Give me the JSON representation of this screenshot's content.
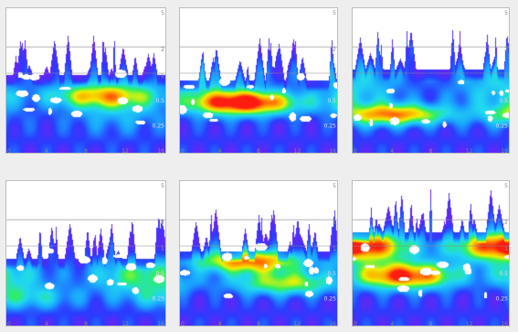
{
  "chart_data": [
    {
      "type": "heatmap",
      "y_tick_labels": [
        "5",
        "2",
        "1",
        "0.5",
        "0.25"
      ],
      "x_tick_labels": [
        "0",
        "4",
        "8",
        "12",
        "16"
      ],
      "contour_labels": [
        "0.5",
        "0.25"
      ],
      "colormap": [
        "#ffffff",
        "#7a1ef0",
        "#2a3cff",
        "#1aa0ff",
        "#20d8f0",
        "#30f060",
        "#f0f000",
        "#ffa000",
        "#ff1c10"
      ],
      "power_bands": [
        {
          "y": 0.4,
          "width": 0.08,
          "peak": 0.55
        },
        {
          "y": 0.33,
          "width": 0.18,
          "peak": 0.25
        }
      ],
      "noise_ceiling": 0.75
    },
    {
      "type": "heatmap",
      "y_tick_labels": [
        "5",
        "2",
        "1",
        "0.5",
        "0.25"
      ],
      "x_tick_labels": [
        "0",
        "4",
        "8",
        "12",
        "16"
      ],
      "contour_labels": [
        "0.5",
        "0.25"
      ],
      "colormap": [
        "#ffffff",
        "#7a1ef0",
        "#2a3cff",
        "#1aa0ff",
        "#20d8f0",
        "#30f060",
        "#f0f000",
        "#ffa000",
        "#ff1c10"
      ],
      "power_bands": [
        {
          "y": 0.35,
          "width": 0.08,
          "peak": 0.95
        },
        {
          "y": 0.5,
          "width": 0.2,
          "peak": 0.25
        }
      ],
      "noise_ceiling": 0.7
    },
    {
      "type": "heatmap",
      "y_tick_labels": [
        "5",
        "2",
        "1",
        "0.5",
        "0.25"
      ],
      "x_tick_labels": [
        "0",
        "4",
        "8",
        "12",
        "16"
      ],
      "contour_labels": [
        "0.5",
        "0.25"
      ],
      "colormap": [
        "#ffffff",
        "#7a1ef0",
        "#2a3cff",
        "#1aa0ff",
        "#20d8f0",
        "#30f060",
        "#f0f000",
        "#ffa000",
        "#ff1c10"
      ],
      "power_bands": [
        {
          "y": 0.27,
          "width": 0.07,
          "peak": 0.72
        },
        {
          "y": 0.45,
          "width": 0.2,
          "peak": 0.3
        }
      ],
      "noise_ceiling": 0.8
    },
    {
      "type": "heatmap",
      "y_tick_labels": [
        "5",
        "2",
        "1",
        "0.5",
        "0.25"
      ],
      "x_tick_labels": [
        "0",
        "4",
        "8",
        "12",
        "16"
      ],
      "contour_labels": [
        "0.5",
        "0.25"
      ],
      "colormap": [
        "#ffffff",
        "#7a1ef0",
        "#2a3cff",
        "#1aa0ff",
        "#20d8f0",
        "#30f060",
        "#f0f000",
        "#ffa000",
        "#ff1c10"
      ],
      "power_bands": [
        {
          "y": 0.35,
          "width": 0.12,
          "peak": 0.45
        },
        {
          "y": 0.2,
          "width": 0.08,
          "peak": 0.3
        }
      ],
      "noise_ceiling": 0.65
    },
    {
      "type": "heatmap",
      "y_tick_labels": [
        "5",
        "2",
        "1",
        "0.5",
        "0.25"
      ],
      "x_tick_labels": [
        "0",
        "4",
        "8",
        "12",
        "16"
      ],
      "contour_labels": [
        "0.5",
        "0.25"
      ],
      "colormap": [
        "#ffffff",
        "#7a1ef0",
        "#2a3cff",
        "#1aa0ff",
        "#20d8f0",
        "#30f060",
        "#f0f000",
        "#ffa000",
        "#ff1c10"
      ],
      "power_bands": [
        {
          "y": 0.45,
          "width": 0.08,
          "peak": 0.8
        },
        {
          "y": 0.3,
          "width": 0.08,
          "peak": 0.55
        }
      ],
      "noise_ceiling": 0.72
    },
    {
      "type": "heatmap",
      "y_tick_labels": [
        "5",
        "2",
        "1",
        "0.5",
        "0.25"
      ],
      "x_tick_labels": [
        "0",
        "4",
        "8",
        "12",
        "16"
      ],
      "contour_labels": [
        "0.5",
        "0.25"
      ],
      "colormap": [
        "#ffffff",
        "#7a1ef0",
        "#2a3cff",
        "#1aa0ff",
        "#20d8f0",
        "#30f060",
        "#f0f000",
        "#ffa000",
        "#ff1c10"
      ],
      "power_bands": [
        {
          "y": 0.55,
          "width": 0.1,
          "peak": 1.0
        },
        {
          "y": 0.35,
          "width": 0.09,
          "peak": 0.9
        }
      ],
      "noise_ceiling": 0.9
    }
  ]
}
